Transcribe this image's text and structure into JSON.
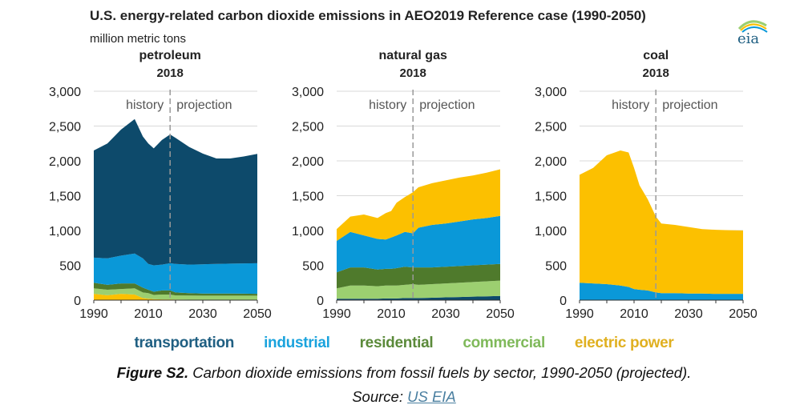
{
  "header": {
    "title": "U.S. energy-related carbon dioxide emissions in AEO2019 Reference case (1990-2050)",
    "subtitle": "million metric tons",
    "logo_text": "eia"
  },
  "colors": {
    "transportation": "#0d4a6b",
    "industrial": "#0a98d8",
    "residential": "#4f7a2c",
    "commercial": "#9ccf70",
    "electric power": "#fcc000"
  },
  "legend_colors": {
    "transportation": "#1f5f82",
    "industrial": "#1aa3dd",
    "residential": "#5b8a3a",
    "commercial": "#7fb95a",
    "electric power": "#e0b020"
  },
  "chart_data": [
    {
      "type": "area",
      "title": "petroleum",
      "marker_year": "2018",
      "marker_label_left": "history",
      "marker_label_right": "projection",
      "x": [
        1990,
        1995,
        2000,
        2005,
        2008,
        2010,
        2012,
        2015,
        2018,
        2020,
        2025,
        2030,
        2035,
        2040,
        2045,
        2050
      ],
      "xticks": [
        "1990",
        "2010",
        "2030",
        "2050"
      ],
      "yticks": [
        "0",
        "500",
        "1,000",
        "1,500",
        "2,000",
        "2,500",
        "3,000"
      ],
      "ylim": [
        0,
        3000
      ],
      "stack_order": [
        "electric power",
        "commercial",
        "residential",
        "industrial",
        "transportation"
      ],
      "series": [
        {
          "name": "electric power",
          "values": [
            90,
            70,
            90,
            80,
            30,
            20,
            15,
            10,
            10,
            8,
            6,
            5,
            5,
            5,
            5,
            5
          ]
        },
        {
          "name": "commercial",
          "values": [
            80,
            80,
            70,
            90,
            80,
            80,
            60,
            70,
            70,
            60,
            60,
            60,
            60,
            60,
            60,
            60
          ]
        },
        {
          "name": "residential",
          "values": [
            80,
            70,
            80,
            70,
            70,
            50,
            45,
            60,
            60,
            42,
            34,
            30,
            30,
            30,
            28,
            25
          ]
        },
        {
          "name": "industrial",
          "values": [
            360,
            380,
            400,
            430,
            420,
            370,
            380,
            370,
            390,
            410,
            410,
            420,
            425,
            430,
            435,
            440
          ]
        },
        {
          "name": "transportation",
          "values": [
            1540,
            1650,
            1810,
            1930,
            1750,
            1730,
            1680,
            1790,
            1850,
            1810,
            1690,
            1590,
            1515,
            1510,
            1535,
            1570
          ]
        }
      ]
    },
    {
      "type": "area",
      "title": "natural gas",
      "marker_year": "2018",
      "marker_label_left": "history",
      "marker_label_right": "projection",
      "x": [
        1990,
        1995,
        2000,
        2005,
        2008,
        2010,
        2012,
        2015,
        2018,
        2020,
        2025,
        2030,
        2035,
        2040,
        2045,
        2050
      ],
      "xticks": [
        "1990",
        "2010",
        "2030",
        "2050"
      ],
      "yticks": [
        "0",
        "500",
        "1,000",
        "1,500",
        "2,000",
        "2,500",
        "3,000"
      ],
      "ylim": [
        0,
        3000
      ],
      "stack_order": [
        "transportation",
        "commercial",
        "residential",
        "industrial",
        "electric power"
      ],
      "series": [
        {
          "name": "transportation",
          "values": [
            20,
            20,
            20,
            20,
            25,
            25,
            25,
            30,
            30,
            30,
            35,
            40,
            45,
            50,
            55,
            60
          ]
        },
        {
          "name": "commercial",
          "values": [
            150,
            190,
            190,
            180,
            185,
            185,
            185,
            190,
            200,
            190,
            195,
            200,
            205,
            210,
            215,
            220
          ]
        },
        {
          "name": "residential",
          "values": [
            230,
            260,
            260,
            240,
            240,
            240,
            250,
            260,
            240,
            250,
            240,
            240,
            240,
            240,
            240,
            240
          ]
        },
        {
          "name": "industrial",
          "values": [
            450,
            510,
            460,
            440,
            420,
            450,
            470,
            500,
            490,
            570,
            610,
            620,
            640,
            660,
            670,
            690
          ]
        },
        {
          "name": "electric power",
          "values": [
            170,
            220,
            300,
            300,
            380,
            380,
            470,
            500,
            590,
            580,
            600,
            620,
            630,
            630,
            650,
            670
          ]
        }
      ]
    },
    {
      "type": "area",
      "title": "coal",
      "marker_year": "2018",
      "marker_label_left": "history",
      "marker_label_right": "projection",
      "x": [
        1990,
        1995,
        2000,
        2005,
        2008,
        2010,
        2012,
        2015,
        2018,
        2020,
        2025,
        2030,
        2035,
        2040,
        2045,
        2050
      ],
      "xticks": [
        "1990",
        "2010",
        "2030",
        "2050"
      ],
      "yticks": [
        "0",
        "500",
        "1,000",
        "1,500",
        "2,000",
        "2,500",
        "3,000"
      ],
      "ylim": [
        0,
        3000
      ],
      "stack_order": [
        "industrial",
        "electric power"
      ],
      "series": [
        {
          "name": "industrial",
          "values": [
            250,
            240,
            230,
            210,
            190,
            160,
            150,
            140,
            110,
            100,
            100,
            95,
            95,
            90,
            90,
            90
          ]
        },
        {
          "name": "electric power",
          "values": [
            1550,
            1660,
            1850,
            1940,
            1930,
            1740,
            1500,
            1310,
            1090,
            1000,
            980,
            955,
            925,
            920,
            915,
            910
          ]
        }
      ]
    }
  ],
  "legend": [
    "transportation",
    "industrial",
    "residential",
    "commercial",
    "electric power"
  ],
  "caption": {
    "label": "Figure S2.",
    "text": " Carbon dioxide emissions from fossil fuels by sector, 1990-2050 (projected)."
  },
  "source": {
    "label": "Source: ",
    "link": "US EIA"
  }
}
